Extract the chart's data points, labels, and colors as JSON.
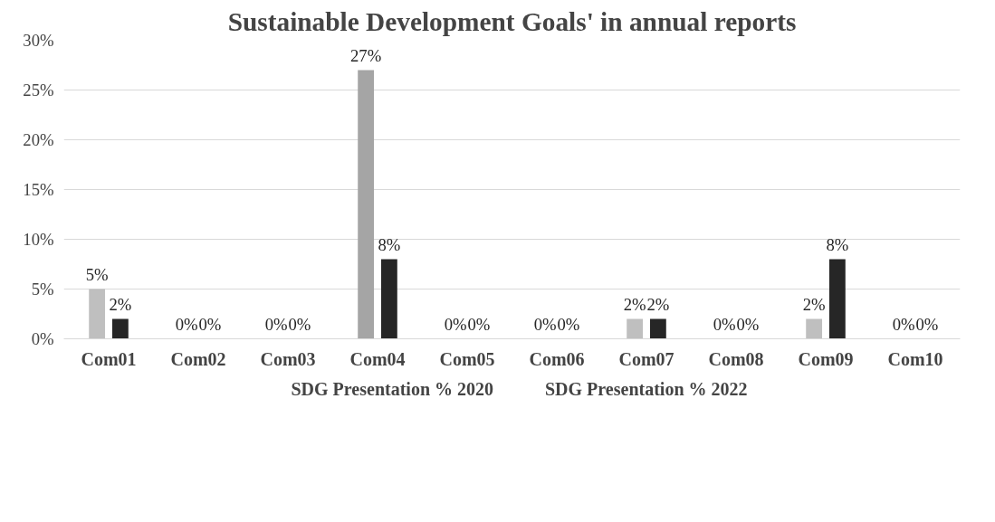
{
  "chart_data": {
    "type": "bar",
    "title": "Sustainable Development Goals' in annual reports",
    "categories": [
      "Com01",
      "Com02",
      "Com03",
      "Com04",
      "Com05",
      "Com06",
      "Com07",
      "Com08",
      "Com09",
      "Com10"
    ],
    "series": [
      {
        "name": "SDG Presentation % 2020",
        "color": "#f4b183",
        "colors": [
          "#bfbfbf",
          "#bfbfbf",
          "#bfbfbf",
          "#a5a5a5",
          "#bfbfbf",
          "#bfbfbf",
          "#bfbfbf",
          "#bfbfbf",
          "#bfbfbf",
          "#bfbfbf"
        ],
        "values": [
          5,
          0,
          0,
          27,
          0,
          0,
          2,
          0,
          2,
          0
        ],
        "value_labels": [
          "5%",
          "0%",
          "0%",
          "27%",
          "0%",
          "0%",
          "2%",
          "0%",
          "2%",
          "0%"
        ]
      },
      {
        "name": "SDG Presentation % 2022",
        "color": "#262626",
        "values": [
          2,
          0,
          0,
          8,
          0,
          0,
          2,
          0,
          8,
          0
        ],
        "value_labels": [
          "2%",
          "0%",
          "0%",
          "8%",
          "0%",
          "0%",
          "2%",
          "0%",
          "8%",
          "0%"
        ]
      }
    ],
    "ylim": [
      0,
      30
    ],
    "yticks": [
      {
        "value": 0,
        "label": "0%"
      },
      {
        "value": 5,
        "label": "5%"
      },
      {
        "value": 10,
        "label": "10%"
      },
      {
        "value": 15,
        "label": "15%"
      },
      {
        "value": 20,
        "label": "20%"
      },
      {
        "value": 25,
        "label": "25%"
      },
      {
        "value": 30,
        "label": "30%"
      }
    ],
    "grid": "y",
    "legend": "bottom"
  }
}
